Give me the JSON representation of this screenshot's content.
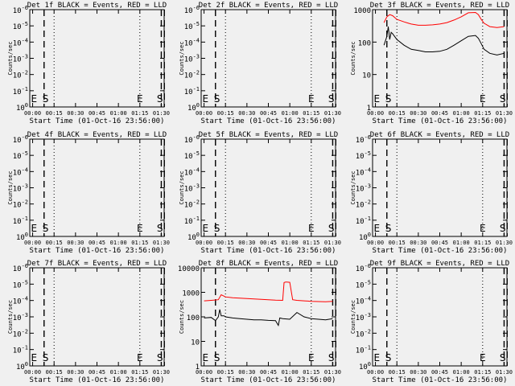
{
  "chart_data": [
    {
      "type": "line",
      "title": "Det 1f BLACK = Events, RED = LLD",
      "xlabel": "Start Time (01-Oct-16 23:56:00)",
      "ylabel": "Counts/sec",
      "x_tick_labels": [
        "00:00",
        "00:15",
        "00:30",
        "00:45",
        "01:00",
        "01:15",
        "01:30"
      ],
      "y_tick_labels": [
        "10^0",
        "10^-1",
        "10^-2",
        "10^-3",
        "10^-4",
        "10^-5",
        "10^-6"
      ],
      "markers": [
        "E",
        "S",
        "E",
        "S"
      ],
      "series": []
    },
    {
      "type": "line",
      "title": "Det 2f BLACK = Events, RED = LLD",
      "xlabel": "Start Time (01-Oct-16 23:56:00)",
      "ylabel": "Counts/sec",
      "x_tick_labels": [
        "00:00",
        "00:15",
        "00:30",
        "00:45",
        "01:00",
        "01:15",
        "01:30"
      ],
      "y_tick_labels": [
        "10^0",
        "10^-1",
        "10^-2",
        "10^-3",
        "10^-4",
        "10^-5",
        "10^-6"
      ],
      "markers": [
        "E",
        "S",
        "E",
        "S"
      ],
      "series": []
    },
    {
      "type": "line",
      "title": "Det 3f BLACK = Events, RED = LLD",
      "xlabel": "Start Time (01-Oct-16 23:56:00)",
      "ylabel": "Counts/sec",
      "x_tick_labels": [
        "00:00",
        "00:15",
        "00:30",
        "00:45",
        "01:00",
        "01:15",
        "01:30"
      ],
      "y_tick_labels": [
        "1",
        "10",
        "100",
        "1000"
      ],
      "markers": [
        "E",
        "S",
        "E",
        "S"
      ],
      "series": [
        {
          "color": "#ff0000",
          "x": [
            6,
            8,
            10,
            12,
            15,
            20,
            25,
            30,
            35,
            40,
            45,
            50,
            55,
            60,
            65,
            70,
            72,
            74,
            76,
            80,
            85,
            90
          ],
          "y": [
            400,
            600,
            700,
            650,
            500,
            420,
            360,
            330,
            330,
            340,
            360,
            400,
            480,
            600,
            800,
            820,
            700,
            500,
            380,
            300,
            280,
            300
          ]
        },
        {
          "color": "#000000",
          "x": [
            6,
            8,
            9,
            10,
            11,
            12,
            15,
            20,
            25,
            30,
            35,
            40,
            45,
            50,
            55,
            60,
            65,
            70,
            72,
            74,
            76,
            80,
            85,
            90
          ],
          "y": [
            80,
            150,
            300,
            120,
            200,
            180,
            120,
            80,
            60,
            55,
            50,
            50,
            52,
            60,
            80,
            110,
            150,
            160,
            130,
            90,
            60,
            45,
            40,
            45
          ]
        }
      ]
    },
    {
      "type": "line",
      "title": "Det 4f BLACK = Events, RED = LLD",
      "xlabel": "Start Time (01-Oct-16 23:56:00)",
      "ylabel": "Counts/sec",
      "x_tick_labels": [
        "00:00",
        "00:15",
        "00:30",
        "00:45",
        "01:00",
        "01:15",
        "01:30"
      ],
      "y_tick_labels": [
        "10^0",
        "10^-1",
        "10^-2",
        "10^-3",
        "10^-4",
        "10^-5",
        "10^-6"
      ],
      "markers": [
        "E",
        "S",
        "E",
        "S"
      ],
      "series": []
    },
    {
      "type": "line",
      "title": "Det 5f BLACK = Events, RED = LLD",
      "xlabel": "Start Time (01-Oct-16 23:56:00)",
      "ylabel": "Counts/sec",
      "x_tick_labels": [
        "00:00",
        "00:15",
        "00:30",
        "00:45",
        "01:00",
        "01:15",
        "01:30"
      ],
      "y_tick_labels": [
        "10^0",
        "10^-1",
        "10^-2",
        "10^-3",
        "10^-4",
        "10^-5",
        "10^-6"
      ],
      "markers": [
        "E",
        "S",
        "E",
        "S"
      ],
      "series": []
    },
    {
      "type": "line",
      "title": "Det 6f BLACK = Events, RED = LLD",
      "xlabel": "Start Time (01-Oct-16 23:56:00)",
      "ylabel": "Counts/sec",
      "x_tick_labels": [
        "00:00",
        "00:15",
        "00:30",
        "00:45",
        "01:00",
        "01:15",
        "01:30"
      ],
      "y_tick_labels": [
        "10^0",
        "10^-1",
        "10^-2",
        "10^-3",
        "10^-4",
        "10^-5",
        "10^-6"
      ],
      "markers": [
        "E",
        "S",
        "E",
        "S"
      ],
      "series": []
    },
    {
      "type": "line",
      "title": "Det 7f BLACK = Events, RED = LLD",
      "xlabel": "Start Time (01-Oct-16 23:56:00)",
      "ylabel": "Counts/sec",
      "x_tick_labels": [
        "00:00",
        "00:15",
        "00:30",
        "00:45",
        "01:00",
        "01:15",
        "01:30"
      ],
      "y_tick_labels": [
        "10^0",
        "10^-1",
        "10^-2",
        "10^-3",
        "10^-4",
        "10^-5",
        "10^-6"
      ],
      "markers": [
        "E",
        "S",
        "E",
        "S"
      ],
      "series": []
    },
    {
      "type": "line",
      "title": "Det 8f BLACK = Events, RED = LLD",
      "xlabel": "Start Time (01-Oct-16 23:56:00)",
      "ylabel": "Counts/sec",
      "x_tick_labels": [
        "00:00",
        "00:15",
        "00:30",
        "00:45",
        "01:00",
        "01:15",
        "01:30"
      ],
      "y_tick_labels": [
        "1",
        "10",
        "100",
        "1000",
        "10000"
      ],
      "markers": [
        "E",
        "S",
        "E",
        "S"
      ],
      "series": [
        {
          "color": "#ff0000",
          "x": [
            0,
            5,
            10,
            12,
            15,
            20,
            25,
            30,
            35,
            40,
            45,
            50,
            55,
            56,
            57,
            58,
            60,
            62,
            65,
            70,
            75,
            80,
            85,
            90
          ],
          "y": [
            450,
            470,
            500,
            800,
            650,
            600,
            580,
            560,
            540,
            520,
            500,
            480,
            470,
            2500,
            2600,
            2600,
            2550,
            500,
            470,
            450,
            430,
            420,
            410,
            430
          ]
        },
        {
          "color": "#000000",
          "x": [
            0,
            5,
            8,
            10,
            11,
            12,
            14,
            15,
            20,
            25,
            30,
            35,
            40,
            45,
            50,
            52,
            53,
            55,
            60,
            65,
            70,
            75,
            80,
            85,
            90
          ],
          "y": [
            90,
            95,
            70,
            100,
            200,
            110,
            110,
            100,
            90,
            85,
            80,
            75,
            75,
            72,
            70,
            45,
            90,
            85,
            80,
            150,
            100,
            85,
            80,
            75,
            85
          ]
        }
      ]
    },
    {
      "type": "line",
      "title": "Det 9f BLACK = Events, RED = LLD",
      "xlabel": "Start Time (01-Oct-16 23:56:00)",
      "ylabel": "Counts/sec",
      "x_tick_labels": [
        "00:00",
        "00:15",
        "00:30",
        "00:45",
        "01:00",
        "01:15",
        "01:30"
      ],
      "y_tick_labels": [
        "10^0",
        "10^-1",
        "10^-2",
        "10^-3",
        "10^-4",
        "10^-5",
        "10^-6"
      ],
      "markers": [
        "E",
        "S",
        "E",
        "S"
      ],
      "series": []
    }
  ]
}
